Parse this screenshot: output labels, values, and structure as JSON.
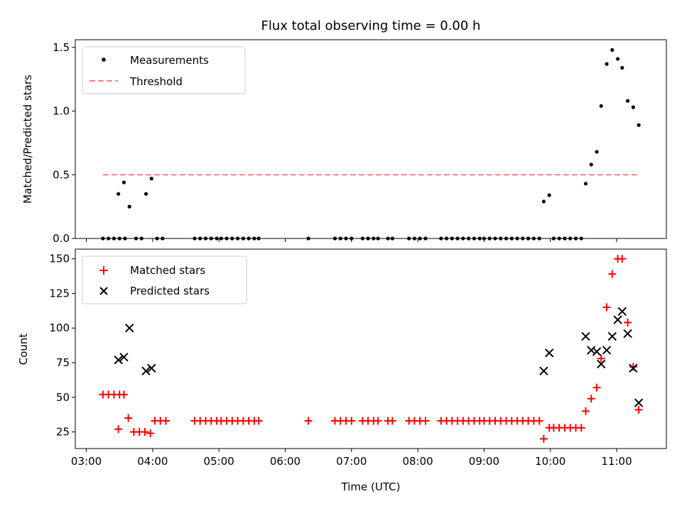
{
  "figure": {
    "title": "Flux total observing time = 0.00 h",
    "xlabel": "Time (UTC)",
    "x_tick_labels": [
      "03:00",
      "04:00",
      "05:00",
      "06:00",
      "07:00",
      "08:00",
      "09:00",
      "10:00",
      "11:00"
    ]
  },
  "chart_data": [
    {
      "type": "scatter",
      "panel": "top",
      "xlabel": "",
      "ylabel": "Matched/Predicted stars",
      "xlim": [
        "02:50",
        "11:45"
      ],
      "ylim": [
        0,
        1.56
      ],
      "y_ticks": [
        0.0,
        0.5,
        1.0,
        1.5
      ],
      "y_tick_labels": [
        "0.0",
        "0.5",
        "1.0",
        "1.5"
      ],
      "x_ticks_shown_labels": false,
      "legend": {
        "placement": "top-left",
        "entries": [
          {
            "label": "Measurements",
            "marker": "dot",
            "color": "#000000"
          },
          {
            "label": "Threshold",
            "marker": "dashed-line",
            "color": "#ff8080"
          }
        ]
      },
      "series": [
        {
          "name": "Measurements",
          "color": "#000000",
          "points": [
            [
              "03:15",
              0
            ],
            [
              "03:20",
              0
            ],
            [
              "03:25",
              0
            ],
            [
              "03:30",
              0
            ],
            [
              "03:35",
              0
            ],
            [
              "03:29",
              0.35
            ],
            [
              "03:34",
              0.44
            ],
            [
              "03:39",
              0.25
            ],
            [
              "03:45",
              0
            ],
            [
              "03:50",
              0
            ],
            [
              "03:54",
              0.35
            ],
            [
              "03:59",
              0.47
            ],
            [
              "04:04",
              0
            ],
            [
              "04:09",
              0
            ],
            [
              "04:38",
              0
            ],
            [
              "04:43",
              0
            ],
            [
              "04:48",
              0
            ],
            [
              "04:53",
              0
            ],
            [
              "04:58",
              0
            ],
            [
              "05:02",
              0
            ],
            [
              "05:07",
              0
            ],
            [
              "05:12",
              0
            ],
            [
              "05:17",
              0
            ],
            [
              "05:22",
              0
            ],
            [
              "05:27",
              0
            ],
            [
              "05:32",
              0
            ],
            [
              "05:36",
              0
            ],
            [
              "06:21",
              0
            ],
            [
              "06:45",
              0
            ],
            [
              "06:50",
              0
            ],
            [
              "06:55",
              0
            ],
            [
              "07:00",
              0
            ],
            [
              "07:10",
              0
            ],
            [
              "07:15",
              0
            ],
            [
              "07:20",
              0
            ],
            [
              "07:24",
              0
            ],
            [
              "07:33",
              0
            ],
            [
              "07:37",
              0
            ],
            [
              "07:52",
              0
            ],
            [
              "07:57",
              0
            ],
            [
              "08:02",
              0
            ],
            [
              "08:07",
              0
            ],
            [
              "08:21",
              0
            ],
            [
              "08:26",
              0
            ],
            [
              "08:31",
              0
            ],
            [
              "08:36",
              0
            ],
            [
              "08:41",
              0
            ],
            [
              "08:46",
              0
            ],
            [
              "08:51",
              0
            ],
            [
              "08:56",
              0
            ],
            [
              "09:00",
              0
            ],
            [
              "09:05",
              0
            ],
            [
              "09:10",
              0
            ],
            [
              "09:15",
              0
            ],
            [
              "09:20",
              0
            ],
            [
              "09:25",
              0
            ],
            [
              "09:30",
              0
            ],
            [
              "09:35",
              0
            ],
            [
              "09:40",
              0
            ],
            [
              "09:45",
              0
            ],
            [
              "09:50",
              0
            ],
            [
              "09:54",
              0.29
            ],
            [
              "09:59",
              0.34
            ],
            [
              "10:03",
              0
            ],
            [
              "10:08",
              0
            ],
            [
              "10:13",
              0
            ],
            [
              "10:18",
              0
            ],
            [
              "10:23",
              0
            ],
            [
              "10:28",
              0
            ],
            [
              "10:32",
              0.43
            ],
            [
              "10:37",
              0.58
            ],
            [
              "10:42",
              0.68
            ],
            [
              "10:46",
              1.04
            ],
            [
              "10:51",
              1.37
            ],
            [
              "10:56",
              1.48
            ],
            [
              "11:01",
              1.41
            ],
            [
              "11:05",
              1.34
            ],
            [
              "11:10",
              1.08
            ],
            [
              "11:15",
              1.03
            ],
            [
              "11:20",
              0.89
            ]
          ]
        },
        {
          "name": "Threshold",
          "color": "#ff8080",
          "style": "dashed",
          "points": [
            [
              "03:15",
              0.5
            ],
            [
              "11:20",
              0.5
            ]
          ]
        }
      ]
    },
    {
      "type": "scatter",
      "panel": "bottom",
      "xlabel": "Time (UTC)",
      "ylabel": "Count",
      "xlim": [
        "02:50",
        "11:45"
      ],
      "ylim": [
        13,
        157
      ],
      "y_ticks": [
        25,
        50,
        75,
        100,
        125,
        150
      ],
      "y_tick_labels": [
        "25",
        "50",
        "75",
        "100",
        "125",
        "150"
      ],
      "legend": {
        "placement": "top-left",
        "entries": [
          {
            "label": "Matched stars",
            "marker": "plus",
            "color": "#ff0000"
          },
          {
            "label": "Predicted stars",
            "marker": "x",
            "color": "#000000"
          }
        ]
      },
      "series": [
        {
          "name": "Matched stars",
          "marker": "plus",
          "color": "#ff0000",
          "points": [
            [
              "03:15",
              52
            ],
            [
              "03:20",
              52
            ],
            [
              "03:25",
              52
            ],
            [
              "03:30",
              52
            ],
            [
              "03:34",
              52
            ],
            [
              "03:29",
              27
            ],
            [
              "03:38",
              35
            ],
            [
              "03:43",
              25
            ],
            [
              "03:48",
              25
            ],
            [
              "03:53",
              25
            ],
            [
              "03:58",
              24
            ],
            [
              "04:02",
              33
            ],
            [
              "04:07",
              33
            ],
            [
              "04:12",
              33
            ],
            [
              "04:38",
              33
            ],
            [
              "04:43",
              33
            ],
            [
              "04:48",
              33
            ],
            [
              "04:53",
              33
            ],
            [
              "04:58",
              33
            ],
            [
              "05:02",
              33
            ],
            [
              "05:07",
              33
            ],
            [
              "05:12",
              33
            ],
            [
              "05:17",
              33
            ],
            [
              "05:22",
              33
            ],
            [
              "05:27",
              33
            ],
            [
              "05:32",
              33
            ],
            [
              "05:36",
              33
            ],
            [
              "06:21",
              33
            ],
            [
              "06:45",
              33
            ],
            [
              "06:50",
              33
            ],
            [
              "06:55",
              33
            ],
            [
              "07:00",
              33
            ],
            [
              "07:10",
              33
            ],
            [
              "07:15",
              33
            ],
            [
              "07:20",
              33
            ],
            [
              "07:24",
              33
            ],
            [
              "07:33",
              33
            ],
            [
              "07:37",
              33
            ],
            [
              "07:52",
              33
            ],
            [
              "07:57",
              33
            ],
            [
              "08:02",
              33
            ],
            [
              "08:07",
              33
            ],
            [
              "08:21",
              33
            ],
            [
              "08:26",
              33
            ],
            [
              "08:31",
              33
            ],
            [
              "08:36",
              33
            ],
            [
              "08:41",
              33
            ],
            [
              "08:46",
              33
            ],
            [
              "08:51",
              33
            ],
            [
              "08:56",
              33
            ],
            [
              "09:00",
              33
            ],
            [
              "09:05",
              33
            ],
            [
              "09:10",
              33
            ],
            [
              "09:15",
              33
            ],
            [
              "09:20",
              33
            ],
            [
              "09:25",
              33
            ],
            [
              "09:30",
              33
            ],
            [
              "09:35",
              33
            ],
            [
              "09:40",
              33
            ],
            [
              "09:45",
              33
            ],
            [
              "09:50",
              33
            ],
            [
              "09:54",
              20
            ],
            [
              "09:59",
              28
            ],
            [
              "10:03",
              28
            ],
            [
              "10:08",
              28
            ],
            [
              "10:13",
              28
            ],
            [
              "10:18",
              28
            ],
            [
              "10:23",
              28
            ],
            [
              "10:28",
              28
            ],
            [
              "10:32",
              40
            ],
            [
              "10:37",
              49
            ],
            [
              "10:42",
              57
            ],
            [
              "10:46",
              78
            ],
            [
              "10:51",
              115
            ],
            [
              "10:56",
              139
            ],
            [
              "11:01",
              150
            ],
            [
              "11:05",
              150
            ],
            [
              "11:10",
              104
            ],
            [
              "11:15",
              72
            ],
            [
              "11:20",
              41
            ]
          ]
        },
        {
          "name": "Predicted stars",
          "marker": "x",
          "color": "#000000",
          "points": [
            [
              "03:29",
              77
            ],
            [
              "03:34",
              79
            ],
            [
              "03:39",
              100
            ],
            [
              "03:54",
              69
            ],
            [
              "03:59",
              71
            ],
            [
              "09:54",
              69
            ],
            [
              "09:59",
              82
            ],
            [
              "10:32",
              94
            ],
            [
              "10:37",
              84
            ],
            [
              "10:42",
              83
            ],
            [
              "10:46",
              74
            ],
            [
              "10:51",
              84
            ],
            [
              "10:56",
              94
            ],
            [
              "11:01",
              106
            ],
            [
              "11:05",
              112
            ],
            [
              "11:10",
              96
            ],
            [
              "11:15",
              71
            ],
            [
              "11:20",
              46
            ]
          ]
        }
      ]
    }
  ]
}
